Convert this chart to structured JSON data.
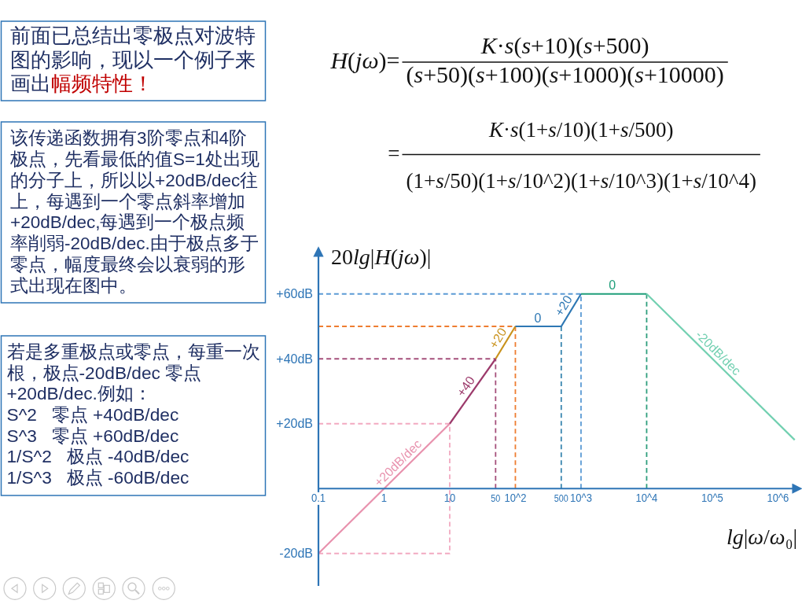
{
  "chart_data": {
    "type": "line",
    "log": "x",
    "xlabel": "lg|ω/ω₀|",
    "ylabel": "20lg|H(jω)|",
    "xlim": [
      0.1,
      2200000
    ],
    "ylim": [
      -30,
      74
    ],
    "xticks": [
      0.1,
      1,
      10,
      50,
      {
        "value": 100,
        "label": "10^2"
      },
      500,
      {
        "value": 1000,
        "label": "10^3"
      },
      {
        "value": 10000,
        "label": "10^4"
      },
      {
        "value": 100000,
        "label": "10^5"
      },
      {
        "value": 1000000,
        "label": "10^6"
      }
    ],
    "yticks": [
      {
        "value": -20,
        "label": "-20dB"
      },
      {
        "value": 20,
        "label": "+20dB"
      },
      {
        "value": 40,
        "label": "+40dB"
      },
      {
        "value": 60,
        "label": "+60dB"
      }
    ],
    "ref_lines": [
      {
        "axis": "y",
        "value": 0,
        "color": "#2e75b6"
      }
    ],
    "series": [
      {
        "color": "#f2a9c1",
        "line_style": "dashed",
        "x": [
          0.1,
          10,
          10,
          0.1
        ],
        "values": [
          20,
          20,
          -20,
          -20
        ]
      },
      {
        "color": "#a5507b",
        "line_style": "dashed",
        "x": [
          0.1,
          50,
          50
        ],
        "values": [
          40,
          40,
          0
        ]
      },
      {
        "color": "#ee7d31",
        "line_style": "dashed",
        "x": [
          0.1,
          100,
          100
        ],
        "values": [
          50,
          50,
          0
        ]
      },
      {
        "color": "#5b9bd5",
        "line_style": "dashed",
        "x": [
          0.1,
          1000,
          1000
        ],
        "values": [
          60,
          60,
          0
        ]
      },
      {
        "color": "#3a86b0",
        "line_style": "dashed",
        "x": [
          500,
          500
        ],
        "values": [
          50,
          0
        ]
      },
      {
        "color": "#2f9e7d",
        "line_style": "dashed",
        "x": [
          10000,
          10000
        ],
        "values": [
          60,
          0
        ]
      },
      {
        "color": "#e891ad",
        "x": [
          0.1,
          10
        ],
        "values": [
          -20,
          20
        ]
      },
      {
        "color": "#9c3a6b",
        "x": [
          10,
          50
        ],
        "values": [
          20,
          40
        ]
      },
      {
        "color": "#c9921c",
        "x": [
          50,
          100
        ],
        "values": [
          40,
          50
        ]
      },
      {
        "color": "#2e78b4",
        "x": [
          100,
          500,
          1000
        ],
        "values": [
          50,
          50,
          60
        ]
      },
      {
        "color": "#1f9e7a",
        "x": [
          1000,
          10000
        ],
        "values": [
          60,
          60
        ]
      },
      {
        "color": "#72d0b1",
        "x": [
          10000,
          1800000
        ],
        "values": [
          60,
          15
        ]
      }
    ],
    "annotations": [
      "H(jω)=",
      "K·s(s+10)(s+500)",
      "(s+50)(s+100)(s+1000)(s+10000)",
      "=",
      "K·s(1+s/10)(1+s/500)",
      "(1+s/50)(1+s/10^2)(1+s/10^3)(1+s/10^4)",
      "前面已总结出零极点对波特图的影响，现以一个例子来画出",
      "幅频特性！",
      "该传递函数拥有3阶零点和4阶极点，先看最低的值S=1处出现的分子上，所以以+20dB/dec往上，每遇到一个零点斜率增加+20dB/dec,每遇到一个极点频率削弱-20dB/dec.由于极点多于零点，幅度最终会以衰弱的形式出现在图中。",
      "若是多重极点或零点，每重一次根，极点-20dB/dec 零点+20dB/dec.例如：\nS^2   零点 +40dB/dec\nS^3   零点 +60dB/dec\n1/S^2   极点 -40dB/dec\n1/S^3   极点 -60dB/dec",
      {
        "text": "+20dB/dec",
        "x": 2,
        "y": 6
      },
      {
        "text": "+40",
        "x": 22.4,
        "y": 30
      },
      {
        "text": "+20",
        "x": 70,
        "y": 45
      },
      {
        "text": "0",
        "x": 220,
        "y": 50
      },
      {
        "text": "+20",
        "x": 700,
        "y": 55
      },
      {
        "text": "0",
        "x": 3000,
        "y": 60
      },
      {
        "text": "-20dB/dec",
        "x": 100000,
        "y": 40
      }
    ]
  }
}
